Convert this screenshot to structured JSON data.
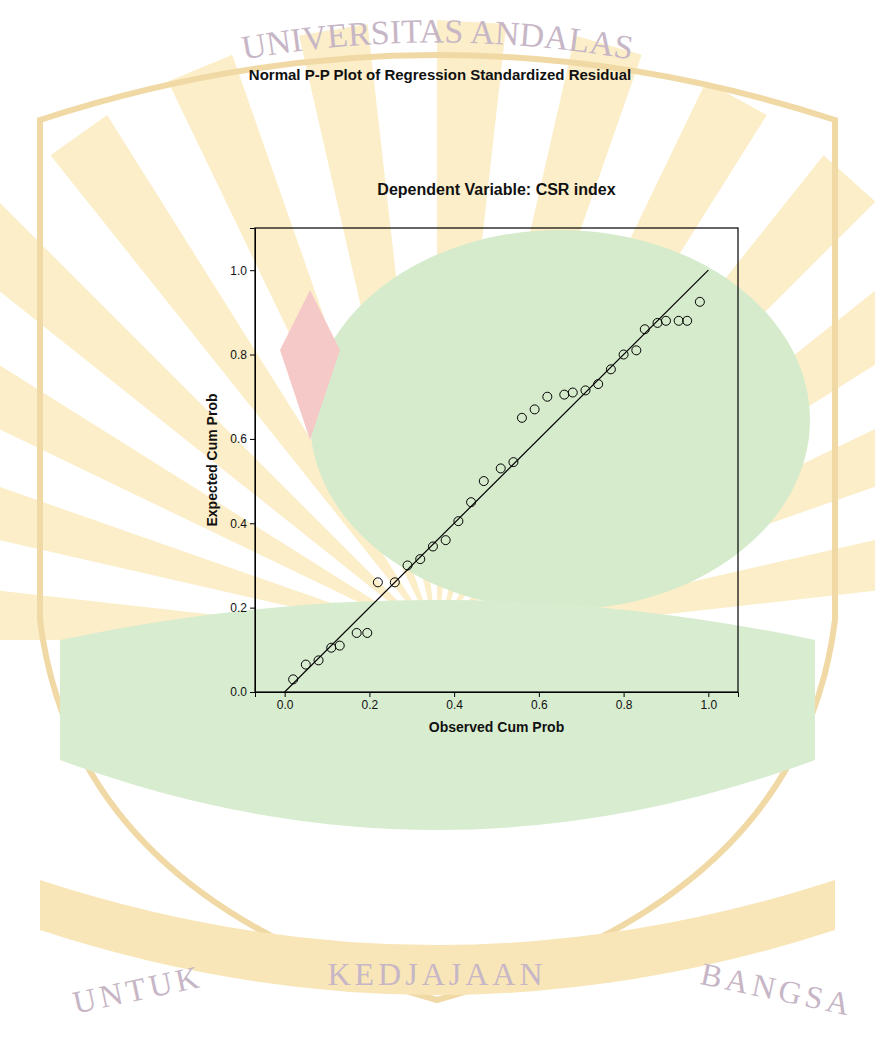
{
  "chart_data": {
    "type": "scatter",
    "title": "Normal P-P Plot of Regression Standardized Residual",
    "subtitle": "Dependent Variable: CSR index",
    "x_label": "Observed Cum Prob",
    "y_label": "Expected Cum Prob",
    "x": [
      0.02,
      0.05,
      0.08,
      0.11,
      0.13,
      0.17,
      0.195,
      0.22,
      0.26,
      0.29,
      0.32,
      0.35,
      0.38,
      0.41,
      0.44,
      0.47,
      0.51,
      0.54,
      0.56,
      0.59,
      0.62,
      0.66,
      0.68,
      0.71,
      0.74,
      0.77,
      0.8,
      0.83,
      0.85,
      0.88,
      0.9,
      0.93,
      0.95,
      0.98
    ],
    "values": [
      0.03,
      0.065,
      0.075,
      0.105,
      0.11,
      0.14,
      0.14,
      0.26,
      0.26,
      0.3,
      0.315,
      0.345,
      0.36,
      0.405,
      0.45,
      0.5,
      0.53,
      0.545,
      0.65,
      0.67,
      0.7,
      0.705,
      0.71,
      0.715,
      0.73,
      0.765,
      0.8,
      0.81,
      0.86,
      0.875,
      0.88,
      0.88,
      0.88,
      0.925
    ],
    "color": "#000000",
    "marker": "circle",
    "reference_line": {
      "x": [
        0,
        1
      ],
      "y": [
        0,
        1
      ]
    },
    "xlim": [
      -0.07,
      1.07
    ],
    "ylim": [
      0,
      1.1
    ],
    "xticks": [
      {
        "value": 0,
        "label": "0.0"
      },
      0.2,
      0.4,
      0.6,
      0.8,
      {
        "value": 1,
        "label": "1.0"
      }
    ],
    "yticks": [
      {
        "value": 0,
        "label": "0.0"
      },
      0.2,
      0.4,
      0.6,
      0.8,
      {
        "value": 1,
        "label": "1.0"
      }
    ],
    "grid": false,
    "annotations": [
      "UNIVERSITAS ANDALAS",
      "UNTUK",
      "KEDJAJAAN",
      "BANGSA"
    ]
  }
}
